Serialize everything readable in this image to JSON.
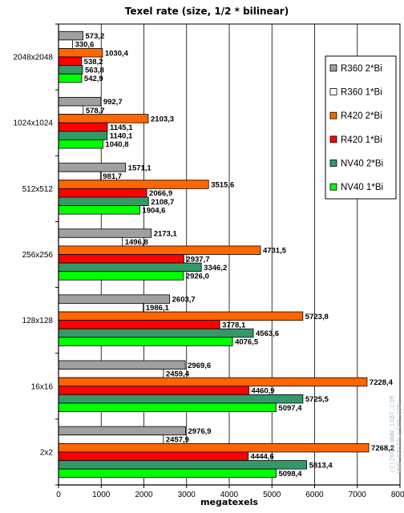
{
  "chart_data": {
    "type": "bar",
    "orientation": "horizontal",
    "title": "Texel rate (size, 1/2 * bilinear)",
    "xlabel": "megatexels",
    "ylabel": "",
    "xlim": [
      0,
      8000
    ],
    "xticks": [
      0,
      1000,
      2000,
      3000,
      4000,
      5000,
      6000,
      7000,
      8000
    ],
    "xtick_labels": [
      "0",
      "1000",
      "2000",
      "3000",
      "4000",
      "5000",
      "6000",
      "7000",
      "8000"
    ],
    "grid": true,
    "legend_position": "right",
    "categories": [
      "2048x2048",
      "1024x1024",
      "512x512",
      "256x256",
      "128x128",
      "16x16",
      "2x2"
    ],
    "series": [
      {
        "name": "R360 2*Bi",
        "color": "#a0a0a0",
        "values": [
          573.2,
          992.7,
          1571.1,
          2173.1,
          2603.7,
          2969.6,
          2976.9
        ],
        "labels": [
          "573,2",
          "992,7",
          "1571,1",
          "2173,1",
          "2603,7",
          "2969,6",
          "2976,9"
        ]
      },
      {
        "name": "R360 1*Bi",
        "color": "#ffffff",
        "values": [
          330.6,
          578.7,
          981.7,
          1496.8,
          1986.1,
          2459.4,
          2457.9
        ],
        "labels": [
          "330,6",
          "578,7",
          "981,7",
          "1496,8",
          "1986,1",
          "2459,4",
          "2457,9"
        ]
      },
      {
        "name": "R420 2*Bi",
        "color": "#ff6600",
        "values": [
          1030.4,
          2103.3,
          3515.6,
          4731.5,
          5723.8,
          7228.4,
          7268.2
        ],
        "labels": [
          "1030,4",
          "2103,3",
          "3515,6",
          "4731,5",
          "5723,8",
          "7228,4",
          "7268,2"
        ]
      },
      {
        "name": "R420 1*Bi",
        "color": "#ff0000",
        "values": [
          538.2,
          1145.1,
          2066.9,
          2937.7,
          3778.1,
          4460.9,
          4444.6
        ],
        "labels": [
          "538,2",
          "1145,1",
          "2066,9",
          "2937,7",
          "3778,1",
          "4460,9",
          "4444,6"
        ]
      },
      {
        "name": "NV40 2*Bi",
        "color": "#339966",
        "values": [
          563.8,
          1140.1,
          2108.7,
          3346.2,
          4563.6,
          5725.5,
          5813.4
        ],
        "labels": [
          "563,8",
          "1140,1",
          "2108,7",
          "3346,2",
          "4563,6",
          "5725,5",
          "5813,4"
        ]
      },
      {
        "name": "NV40 1*Bi",
        "color": "#00ff00",
        "values": [
          542.9,
          1040.8,
          1904.6,
          2926.0,
          4076.5,
          5097.4,
          5098.4
        ],
        "labels": [
          "542,9",
          "1040,8",
          "1904,6",
          "2926,0",
          "4076,5",
          "5097,4",
          "5098,4"
        ]
      }
    ]
  },
  "watermark": {
    "line1": "(C)2004 WWW.IXBT.COM",
    "line2": "WWW.DIGIT-LIFE.COM"
  }
}
